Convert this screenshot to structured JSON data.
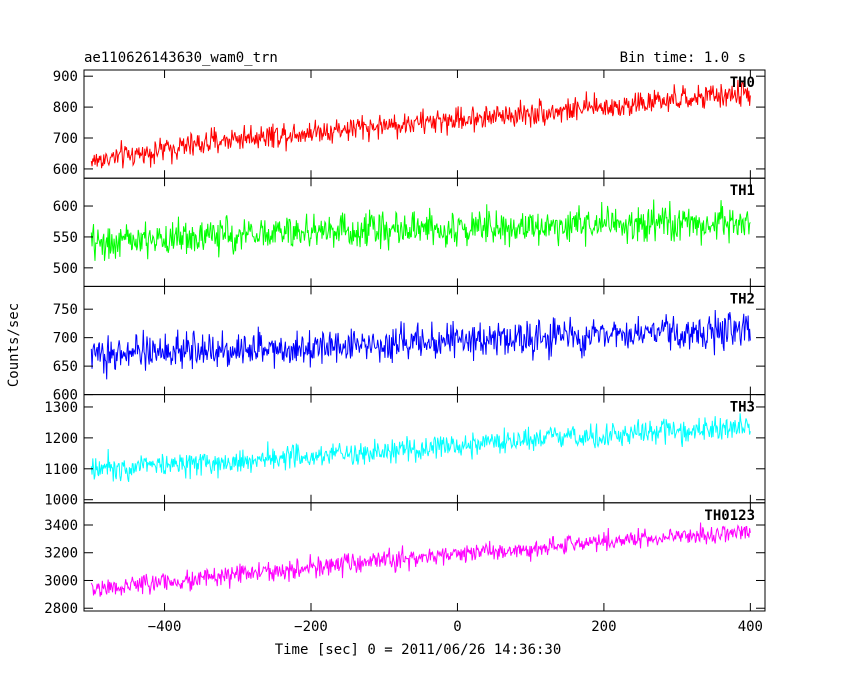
{
  "header": {
    "title": "ae110626143630_wam0_trn",
    "bin_time": "Bin time: 1.0 s"
  },
  "chart_data": {
    "type": "line",
    "title": "ae110626143630_wam0_trn",
    "subtitle": "Bin time: 1.0 s",
    "xlabel": "Time [sec] 0 = 2011/06/26 14:36:30",
    "ylabel": "Counts/sec",
    "xlim": [
      -510,
      420
    ],
    "x_ticks": [
      -400,
      -200,
      0,
      200,
      400
    ],
    "x_tick_labels": [
      "−400",
      "−200",
      "0",
      "200",
      "400"
    ],
    "x_range_data": [
      -500,
      400
    ],
    "bin_seconds": 1.0,
    "panels": [
      {
        "name": "TH0",
        "color": "#ff0000",
        "ylim": [
          570,
          920
        ],
        "y_ticks": [
          600,
          700,
          800,
          900
        ],
        "trend": [
          [
            -500,
            625
          ],
          [
            -300,
            700
          ],
          [
            0,
            760
          ],
          [
            200,
            800
          ],
          [
            400,
            845
          ]
        ],
        "noise": 40
      },
      {
        "name": "TH1",
        "color": "#00ff00",
        "ylim": [
          470,
          645
        ],
        "y_ticks": [
          500,
          550,
          600
        ],
        "trend": [
          [
            -500,
            540
          ],
          [
            -200,
            560
          ],
          [
            0,
            565
          ],
          [
            200,
            570
          ],
          [
            400,
            572
          ]
        ],
        "noise": 28
      },
      {
        "name": "TH2",
        "color": "#0000ff",
        "ylim": [
          600,
          790
        ],
        "y_ticks": [
          600,
          650,
          700,
          750
        ],
        "trend": [
          [
            -500,
            670
          ],
          [
            -200,
            685
          ],
          [
            0,
            695
          ],
          [
            200,
            705
          ],
          [
            400,
            712
          ]
        ],
        "noise": 30
      },
      {
        "name": "TH3",
        "color": "#00ffff",
        "ylim": [
          990,
          1340
        ],
        "y_ticks": [
          1000,
          1100,
          1200,
          1300
        ],
        "trend": [
          [
            -500,
            1105
          ],
          [
            -300,
            1125
          ],
          [
            0,
            1170
          ],
          [
            200,
            1210
          ],
          [
            400,
            1235
          ]
        ],
        "noise": 40
      },
      {
        "name": "TH0123",
        "color": "#ff00ff",
        "ylim": [
          2780,
          3560
        ],
        "y_ticks": [
          2800,
          3000,
          3200,
          3400
        ],
        "trend": [
          [
            -500,
            2935
          ],
          [
            -300,
            3040
          ],
          [
            0,
            3190
          ],
          [
            200,
            3280
          ],
          [
            400,
            3350
          ]
        ],
        "noise": 70
      }
    ]
  }
}
